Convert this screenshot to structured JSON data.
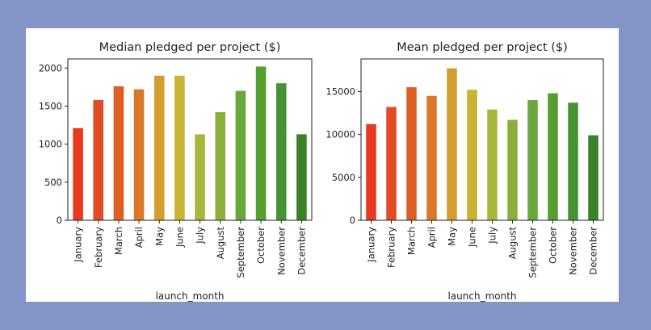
{
  "colors": {
    "page_background": "#8494c6",
    "panel_background": "#ffffff",
    "bar_palette": [
      "#e8381e",
      "#e14c24",
      "#dc6024",
      "#d9782a",
      "#d59c2e",
      "#c8b432",
      "#a8b63a",
      "#8aaf3a",
      "#6aa73c",
      "#549f2e",
      "#479232",
      "#3a8226"
    ]
  },
  "chart_data": [
    {
      "type": "bar",
      "title": "Median pledged per project ($)",
      "xlabel": "launch_month",
      "ylabel": "",
      "categories": [
        "January",
        "February",
        "March",
        "April",
        "May",
        "June",
        "July",
        "August",
        "September",
        "October",
        "November",
        "December"
      ],
      "values": [
        1210,
        1580,
        1760,
        1720,
        1900,
        1900,
        1130,
        1420,
        1700,
        2020,
        1800,
        1130
      ],
      "ylim": [
        0,
        2120
      ],
      "yticks": [
        0,
        500,
        1000,
        1500,
        2000
      ],
      "grid": false,
      "legend": "none"
    },
    {
      "type": "bar",
      "title": "Mean pledged per project ($)",
      "xlabel": "launch_month",
      "ylabel": "",
      "categories": [
        "January",
        "February",
        "March",
        "April",
        "May",
        "June",
        "July",
        "August",
        "September",
        "October",
        "November",
        "December"
      ],
      "values": [
        11200,
        13200,
        15500,
        14500,
        17700,
        15200,
        12900,
        11700,
        14000,
        14800,
        13700,
        9900
      ],
      "ylim": [
        0,
        18800
      ],
      "yticks": [
        0,
        5000,
        10000,
        15000
      ],
      "grid": false,
      "legend": "none"
    }
  ]
}
